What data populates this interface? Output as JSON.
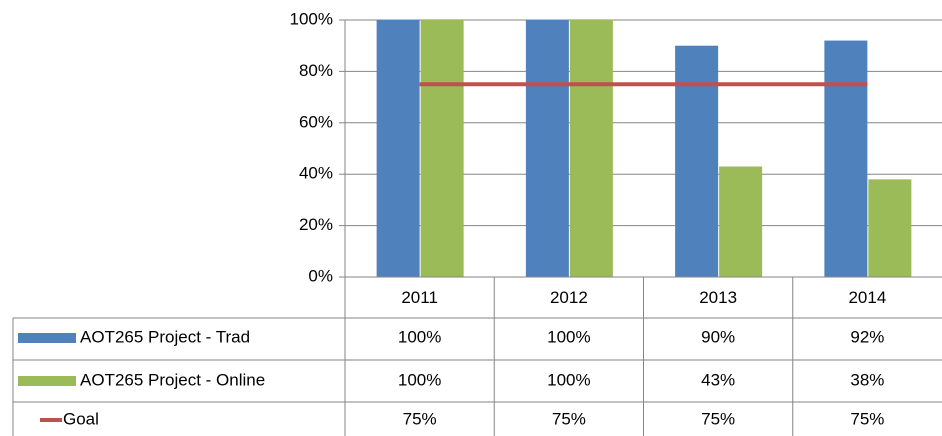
{
  "chart_data": {
    "type": "bar",
    "categories": [
      "2011",
      "2012",
      "2013",
      "2014"
    ],
    "series": [
      {
        "name": "AOT265 Project - Trad",
        "color": "#4f81bd",
        "values": [
          100,
          100,
          90,
          92
        ],
        "value_labels": [
          "100%",
          "100%",
          "90%",
          "92%"
        ]
      },
      {
        "name": "AOT265 Project - Online",
        "color": "#9bbb59",
        "values": [
          100,
          100,
          43,
          38
        ],
        "value_labels": [
          "100%",
          "100%",
          "43%",
          "38%"
        ]
      },
      {
        "name": "Goal",
        "color": "#c0504d",
        "type": "line",
        "values": [
          75,
          75,
          75,
          75
        ],
        "value_labels": [
          "75%",
          "75%",
          "75%",
          "75%"
        ]
      }
    ],
    "ylim": [
      0,
      100
    ],
    "yticks": [
      {
        "value": 0,
        "label": "0%"
      },
      {
        "value": 20,
        "label": "20%"
      },
      {
        "value": 40,
        "label": "40%"
      },
      {
        "value": 60,
        "label": "60%"
      },
      {
        "value": 80,
        "label": "80%"
      },
      {
        "value": 100,
        "label": "100%"
      }
    ],
    "grid": true,
    "data_table": true
  }
}
